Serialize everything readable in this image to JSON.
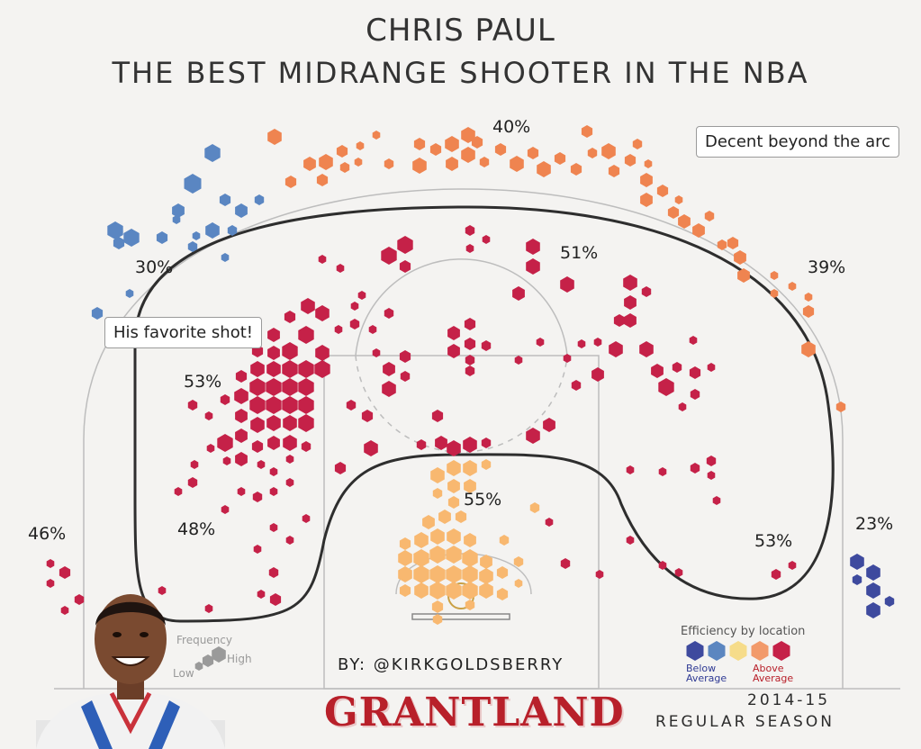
{
  "header": {
    "title_line1": "CHRIS PAUL",
    "title_line2": "THE BEST MIDRANGE SHOOTER IN THE NBA"
  },
  "callouts": {
    "favorite_shot": "His favorite shot!",
    "beyond_arc": "Decent beyond the arc"
  },
  "footer": {
    "byline": "BY: @KIRKGOLDSBERRY",
    "brand": "GRANTLAND",
    "season_line1": "2014-15",
    "season_line2": "REGULAR SEASON"
  },
  "legend": {
    "efficiency_title": "Efficiency by location",
    "efficiency_low": "Below Average",
    "efficiency_high": "Above Average",
    "efficiency_colors": [
      "#3e4a9e",
      "#5b86c0",
      "#f6dc8a",
      "#f29a6a",
      "#c52148"
    ],
    "frequency_title": "Frequency",
    "frequency_low": "Low",
    "frequency_high": "High",
    "frequency_color": "#9a9a9a"
  },
  "chart_data": {
    "type": "heatmap",
    "title": "CHRIS PAUL",
    "subtitle": "THE BEST MIDRANGE SHOOTER IN THE NBA",
    "zones": [
      {
        "label": "40%",
        "zone": "above the break 3",
        "efficiency": "above average",
        "color": "#ef8450"
      },
      {
        "label": "30%",
        "zone": "left wing 3",
        "efficiency": "below average",
        "color": "#5a86c2"
      },
      {
        "label": "39%",
        "zone": "right wing 3",
        "efficiency": "above average",
        "color": "#ef8450"
      },
      {
        "label": "51%",
        "zone": "top of key midrange",
        "efficiency": "above average",
        "color": "#c52148"
      },
      {
        "label": "53%",
        "zone": "left elbow midrange",
        "efficiency": "above average",
        "color": "#c52148"
      },
      {
        "label": "48%",
        "zone": "left baseline midrange",
        "efficiency": "above average",
        "color": "#c52148"
      },
      {
        "label": "46%",
        "zone": "left corner 3",
        "efficiency": "above average",
        "color": "#c52148"
      },
      {
        "label": "55%",
        "zone": "restricted area",
        "efficiency": "average",
        "color": "#f8b870"
      },
      {
        "label": "53%",
        "zone": "right baseline midrange",
        "efficiency": "above average",
        "color": "#c52148"
      },
      {
        "label": "23%",
        "zone": "right corner 3",
        "efficiency": "below average",
        "color": "#3e4a9e"
      }
    ],
    "legend_position": "bottom-right",
    "grid": false
  }
}
